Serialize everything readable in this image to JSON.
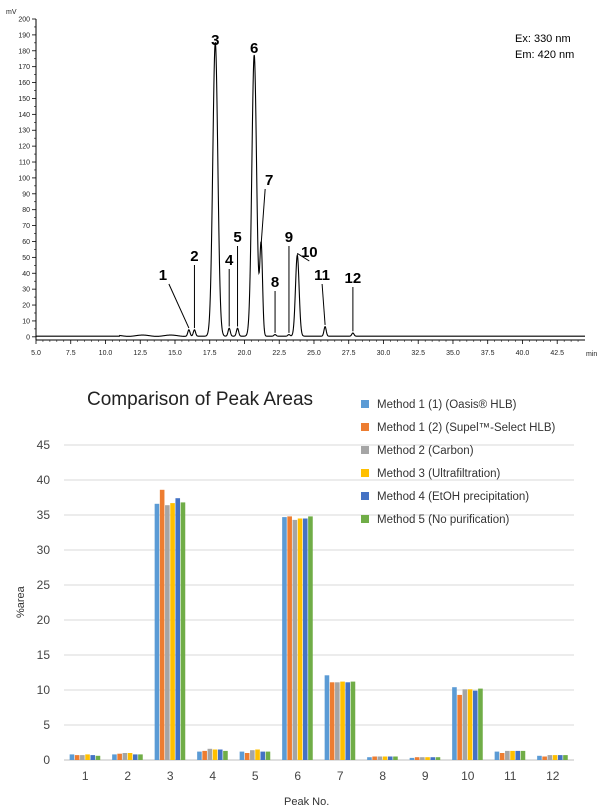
{
  "chart_data": [
    {
      "type": "line",
      "y_unit": "mV",
      "x_unit": "min",
      "xlim": [
        5.0,
        44.5
      ],
      "ylim": [
        -2,
        200
      ],
      "x_ticks": [
        "5.0",
        "7.5",
        "10.0",
        "12.5",
        "15.0",
        "17.5",
        "20.0",
        "22.5",
        "25.0",
        "27.5",
        "30.0",
        "32.5",
        "35.0",
        "37.5",
        "40.0",
        "42.5"
      ],
      "y_ticks": [
        "0",
        "10",
        "20",
        "30",
        "40",
        "50",
        "60",
        "70",
        "80",
        "90",
        "100",
        "110",
        "120",
        "130",
        "140",
        "150",
        "160",
        "170",
        "180",
        "190",
        "200"
      ],
      "annotation_lines": [
        "Ex: 330 nm",
        "Em: 420 nm"
      ],
      "peaks": [
        {
          "label": "1",
          "rt": 16.0,
          "height": 4
        },
        {
          "label": "2",
          "rt": 16.4,
          "height": 4
        },
        {
          "label": "3",
          "rt": 17.9,
          "height": 185
        },
        {
          "label": "4",
          "rt": 18.9,
          "height": 5
        },
        {
          "label": "5",
          "rt": 19.5,
          "height": 5
        },
        {
          "label": "6",
          "rt": 20.7,
          "height": 177
        },
        {
          "label": "7",
          "rt": 21.2,
          "height": 57
        },
        {
          "label": "8",
          "rt": 22.2,
          "height": 1
        },
        {
          "label": "9",
          "rt": 23.2,
          "height": 1
        },
        {
          "label": "10",
          "rt": 23.8,
          "height": 51
        },
        {
          "label": "11",
          "rt": 25.8,
          "height": 6
        },
        {
          "label": "12",
          "rt": 27.8,
          "height": 2
        }
      ]
    },
    {
      "type": "bar",
      "title": "Comparison of Peak Areas",
      "xlabel": "Peak No.",
      "ylabel": "%area",
      "ylim": [
        0,
        45
      ],
      "y_ticks": [
        "0",
        "5",
        "10",
        "15",
        "20",
        "25",
        "30",
        "35",
        "40",
        "45"
      ],
      "legend_position": "top-right",
      "categories": [
        "1",
        "2",
        "3",
        "4",
        "5",
        "6",
        "7",
        "8",
        "9",
        "10",
        "11",
        "12"
      ],
      "series": [
        {
          "name": "Method 1 (1) (Oasis® HLB)",
          "color": "#5b9bd5",
          "values": [
            0.8,
            0.8,
            36.6,
            1.2,
            1.2,
            34.7,
            12.1,
            0.4,
            0.3,
            10.4,
            1.2,
            0.6
          ]
        },
        {
          "name": "Method 1 (2) (Supel™-Select HLB)",
          "color": "#ed7d31",
          "values": [
            0.7,
            0.9,
            38.6,
            1.3,
            1.0,
            34.8,
            11.1,
            0.5,
            0.4,
            9.3,
            1.0,
            0.5
          ]
        },
        {
          "name": "Method 2 (Carbon)",
          "color": "#a5a5a5",
          "values": [
            0.7,
            1.0,
            36.4,
            1.6,
            1.4,
            34.3,
            11.1,
            0.5,
            0.4,
            10.1,
            1.3,
            0.7
          ]
        },
        {
          "name": "Method 3 (Ultrafiltration)",
          "color": "#ffc000",
          "values": [
            0.8,
            1.0,
            36.7,
            1.5,
            1.5,
            34.5,
            11.2,
            0.5,
            0.4,
            10.1,
            1.3,
            0.7
          ]
        },
        {
          "name": "Method 4 (EtOH precipitation)",
          "color": "#4472c4",
          "values": [
            0.7,
            0.8,
            37.4,
            1.5,
            1.2,
            34.5,
            11.1,
            0.5,
            0.4,
            9.9,
            1.3,
            0.7
          ]
        },
        {
          "name": "Method 5 (No purification)",
          "color": "#70ad47",
          "values": [
            0.6,
            0.8,
            36.8,
            1.3,
            1.2,
            34.8,
            11.2,
            0.5,
            0.4,
            10.2,
            1.3,
            0.7
          ]
        }
      ]
    }
  ]
}
